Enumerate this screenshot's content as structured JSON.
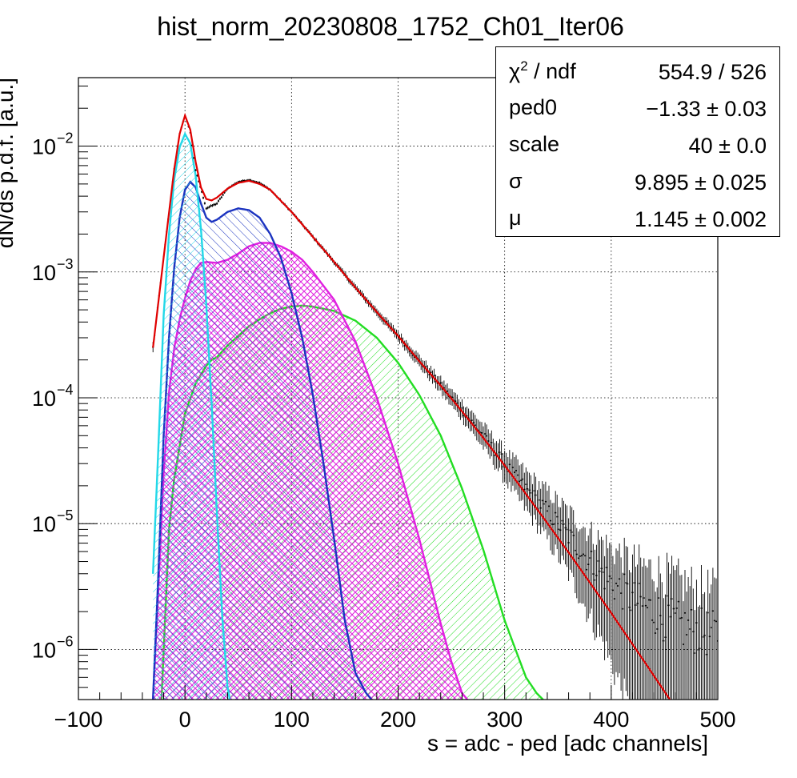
{
  "chart_data": {
    "type": "line",
    "title": "hist_norm_20230808_1752_Ch01_Iter06",
    "xlabel": "s = adc - ped [adc channels]",
    "ylabel": "dN/ds p.d.f. [a.u.]",
    "xlim": [
      -100,
      500
    ],
    "ylim": [
      4e-07,
      0.035
    ],
    "yscale": "log",
    "grid": true,
    "x_ticks": [
      "−100",
      "0",
      "100",
      "200",
      "300",
      "400",
      "500"
    ],
    "x_tick_values": [
      -100,
      0,
      100,
      200,
      300,
      400,
      500
    ],
    "y_ticks": [
      {
        "value": 0.01,
        "mantissa": "10",
        "exp": "−2"
      },
      {
        "value": 0.001,
        "mantissa": "10",
        "exp": "−3"
      },
      {
        "value": 0.0001,
        "mantissa": "10",
        "exp": "−4"
      },
      {
        "value": 1e-05,
        "mantissa": "10",
        "exp": "−5"
      },
      {
        "value": 1e-06,
        "mantissa": "10",
        "exp": "−6"
      }
    ],
    "colors": {
      "data": "#000000",
      "total_fit": "#e00000",
      "pedestal_peak": "#22d8e8",
      "one_pe": "#1c34c0",
      "two_pe": "#e020e0",
      "three_pe": "#22dd22"
    },
    "series": [
      {
        "key": "data",
        "kind": "histogram_points",
        "x": [
          -30,
          -20,
          -10,
          -5,
          0,
          5,
          10,
          20,
          30,
          40,
          50,
          60,
          70,
          80,
          100,
          120,
          140,
          160,
          180,
          200,
          220,
          240,
          260,
          280,
          300,
          320,
          340,
          360,
          380,
          400,
          420,
          440,
          460,
          480,
          500
        ],
        "y": [
          0.00025,
          0.0013,
          0.0066,
          0.0125,
          0.0175,
          0.0128,
          0.0064,
          0.0032,
          0.0035,
          0.0046,
          0.0052,
          0.0054,
          0.0051,
          0.0045,
          0.003,
          0.0019,
          0.0012,
          0.00075,
          0.00048,
          0.00031,
          0.000195,
          0.000125,
          8e-05,
          5e-05,
          3e-05,
          1.9e-05,
          1.25e-05,
          8e-06,
          5e-06,
          3.4e-06,
          2.5e-06,
          2e-06,
          1.6e-06,
          1.4e-06,
          1.3e-06
        ]
      },
      {
        "key": "total_fit",
        "kind": "curve",
        "x": [
          -30,
          -20,
          -10,
          -5,
          0,
          5,
          10,
          15,
          20,
          25,
          30,
          40,
          50,
          60,
          70,
          80,
          100,
          120,
          140,
          160,
          180,
          200,
          220,
          240,
          260,
          280,
          300,
          320,
          340,
          360,
          380,
          400,
          420,
          440,
          455
        ],
        "y": [
          0.00025,
          0.0013,
          0.0066,
          0.0125,
          0.0175,
          0.0135,
          0.0075,
          0.0047,
          0.0038,
          0.0037,
          0.0039,
          0.0046,
          0.0051,
          0.0053,
          0.005,
          0.0045,
          0.003,
          0.0019,
          0.0012,
          0.00075,
          0.00048,
          0.00031,
          0.000195,
          0.000125,
          7.8e-05,
          4.8e-05,
          2.9e-05,
          1.72e-05,
          1.01e-05,
          5.9e-06,
          3.4e-06,
          1.95e-06,
          1.1e-06,
          6.2e-07,
          4e-07
        ]
      },
      {
        "key": "pedestal_peak",
        "kind": "filled_curve",
        "x": [
          -30,
          -25,
          -20,
          -15,
          -10,
          -5,
          0,
          5,
          10,
          15,
          20,
          25,
          30,
          35,
          40,
          42
        ],
        "y": [
          4e-06,
          4e-05,
          0.00045,
          0.002,
          0.0055,
          0.0098,
          0.0125,
          0.0105,
          0.0058,
          0.0022,
          0.00055,
          9e-05,
          1.2e-05,
          1.8e-06,
          5e-07,
          4e-07
        ]
      },
      {
        "key": "one_pe",
        "kind": "filled_curve",
        "x": [
          -30,
          -25,
          -20,
          -15,
          -10,
          -5,
          0,
          5,
          10,
          15,
          20,
          25,
          30,
          40,
          50,
          60,
          70,
          80,
          90,
          100,
          110,
          120,
          130,
          140,
          150,
          160,
          170,
          175
        ],
        "y": [
          4e-07,
          4e-06,
          5e-05,
          0.0003,
          0.0011,
          0.0027,
          0.0045,
          0.0052,
          0.0047,
          0.0035,
          0.0027,
          0.0025,
          0.0026,
          0.003,
          0.0032,
          0.0031,
          0.0027,
          0.002,
          0.0013,
          0.00068,
          0.0003,
          0.000105,
          3e-05,
          7.5e-06,
          1.7e-06,
          6.5e-07,
          4.5e-07,
          4e-07
        ]
      },
      {
        "key": "two_pe",
        "kind": "filled_curve",
        "x": [
          -30,
          -25,
          -20,
          -15,
          -10,
          -5,
          0,
          5,
          10,
          15,
          20,
          30,
          40,
          50,
          60,
          70,
          80,
          90,
          100,
          110,
          120,
          140,
          160,
          180,
          200,
          220,
          240,
          250,
          260,
          265
        ],
        "y": [
          4e-07,
          3e-06,
          2.5e-05,
          0.00011,
          0.00025,
          0.00042,
          0.00062,
          0.00085,
          0.00105,
          0.00118,
          0.0012,
          0.00118,
          0.00125,
          0.0014,
          0.0016,
          0.0017,
          0.0017,
          0.0016,
          0.00145,
          0.00125,
          0.001,
          0.0006,
          0.00028,
          0.0001,
          3e-05,
          7.5e-06,
          1.6e-06,
          8e-07,
          4.5e-07,
          4e-07
        ]
      },
      {
        "key": "three_pe",
        "kind": "filled_curve",
        "x": [
          -22,
          -15,
          -10,
          0,
          10,
          20,
          25,
          30,
          40,
          50,
          60,
          70,
          80,
          90,
          100,
          110,
          120,
          140,
          160,
          180,
          200,
          220,
          240,
          260,
          280,
          300,
          320,
          330,
          336
        ],
        "y": [
          4e-07,
          9e-06,
          2.3e-05,
          7.5e-05,
          0.00013,
          0.00018,
          0.0002,
          0.00021,
          0.00026,
          0.00031,
          0.00037,
          0.00042,
          0.00047,
          0.00051,
          0.00053,
          0.00054,
          0.00053,
          0.00049,
          0.00041,
          0.0003,
          0.00019,
          0.000105,
          5e-05,
          1.9e-05,
          6.2e-06,
          1.7e-06,
          6e-07,
          4.5e-07,
          4e-07
        ]
      }
    ]
  },
  "stats": {
    "rows": [
      {
        "name_html": "χ<sup style='font-size:17px'>2</sup> / ndf",
        "value": "554.9 / 526"
      },
      {
        "name": "ped0",
        "value": "−1.33 ± 0.03"
      },
      {
        "name": "scale",
        "value": "40 ± 0.0"
      },
      {
        "name": "σ",
        "value": "9.895 ± 0.025"
      },
      {
        "name": "μ",
        "value": "1.145 ± 0.002"
      }
    ]
  }
}
